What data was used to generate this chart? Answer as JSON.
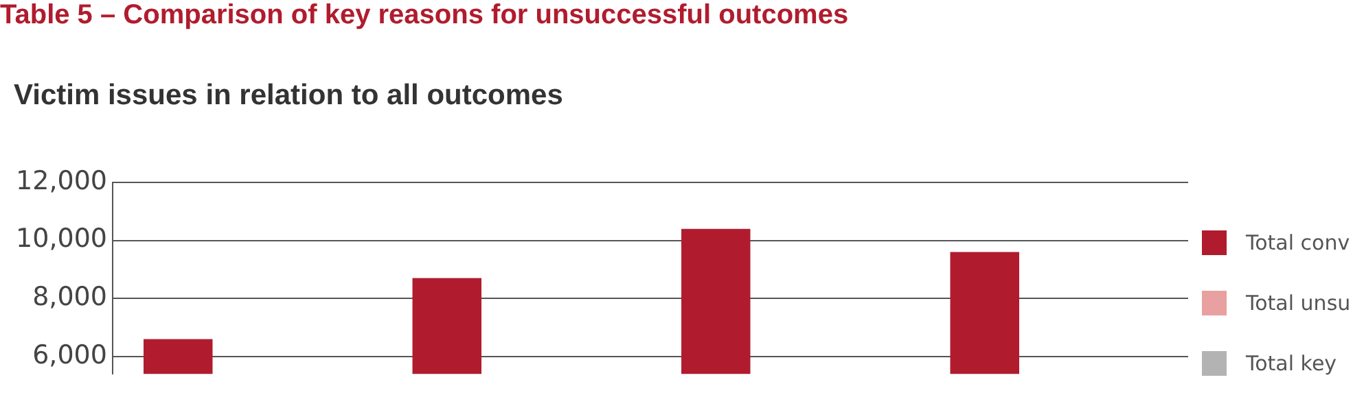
{
  "chart_data": {
    "type": "bar",
    "title": "Table 5 – Comparison of key reasons for unsuccessful outcomes",
    "subtitle": "Victim issues in relation to all outcomes",
    "categories": [
      null,
      null,
      null,
      null
    ],
    "series": [
      {
        "name": "Total conv",
        "color": "#b01c2e",
        "values": [
          6600,
          8700,
          10400,
          9600
        ]
      },
      {
        "name": "Total unsu",
        "color": "#e8a0a0",
        "values": [
          null,
          null,
          null,
          null
        ]
      },
      {
        "name": "Total key",
        "color": "#b3b3b3",
        "values": [
          null,
          null,
          null,
          null
        ]
      }
    ],
    "ylim": [
      5400,
      12000
    ],
    "yticks": [
      {
        "value": 6000,
        "label": "6,000"
      },
      {
        "value": 8000,
        "label": "8,000"
      },
      {
        "value": 10000,
        "label": "10,000"
      },
      {
        "value": 12000,
        "label": "12,000"
      }
    ],
    "grid": "y",
    "legend": "right"
  }
}
